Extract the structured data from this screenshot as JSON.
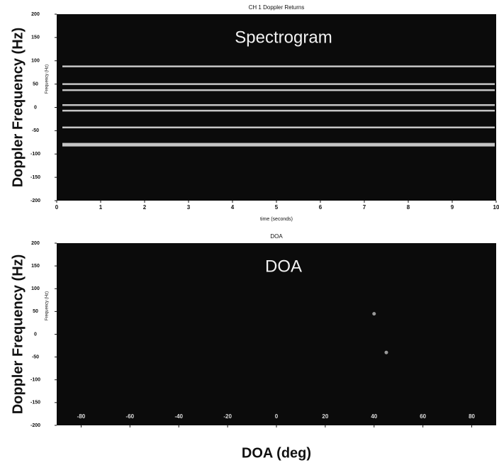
{
  "chart_data": [
    {
      "type": "spectrogram",
      "title": "CH 1 Doppler Returns",
      "annotation": "Spectrogram",
      "outer_ylabel": "Doppler Frequency (Hz)",
      "ylabel": "Frequency (Hz)",
      "xlabel": "time (seconds)",
      "xlim": [
        0,
        10
      ],
      "xticks": [
        0,
        1,
        2,
        3,
        4,
        5,
        6,
        7,
        8,
        9,
        10
      ],
      "ylim": [
        -200,
        200
      ],
      "yticks": [
        200,
        150,
        100,
        50,
        0,
        -50,
        -100,
        -150,
        -200
      ],
      "values": [
        88,
        50,
        37,
        5,
        -7,
        -43,
        -80
      ],
      "color": "#e8e8e8"
    },
    {
      "type": "scatter",
      "title": "DOA",
      "annotation": "DOA",
      "outer_ylabel": "Doppler Frequency (Hz)",
      "ylabel": "Frequency (Hz)",
      "outer_xlabel": "DOA (deg)",
      "xlim": [
        -90,
        90
      ],
      "xticks": [
        -80,
        -60,
        -40,
        -20,
        0,
        20,
        40,
        60,
        80
      ],
      "ylim": [
        -200,
        200
      ],
      "yticks": [
        200,
        150,
        100,
        50,
        0,
        -50,
        -100,
        -150,
        -200
      ],
      "x": [
        40,
        45
      ],
      "values": [
        45,
        -40
      ],
      "color": "#9a9a9a"
    }
  ]
}
